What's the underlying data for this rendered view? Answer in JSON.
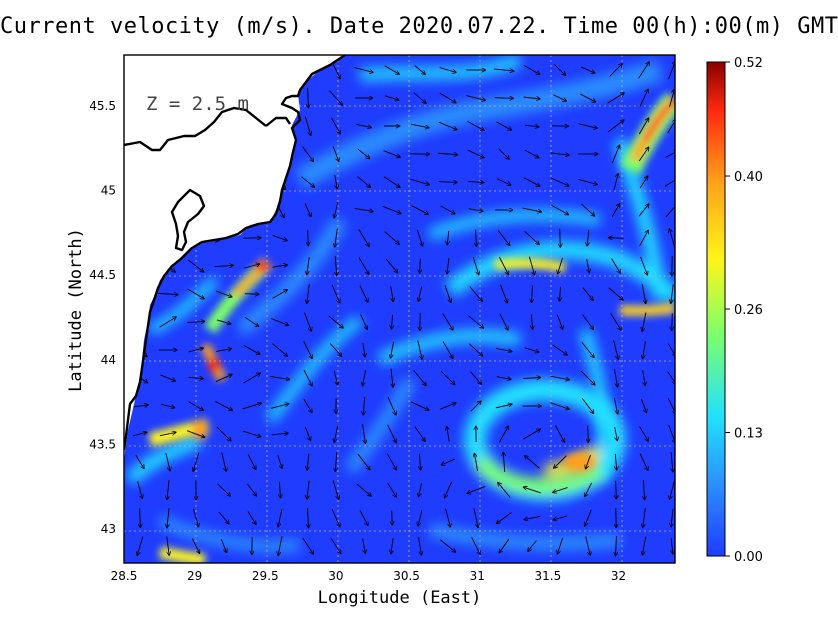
{
  "title": "Current velocity (m/s). Date 2020.07.22. Time 00(h):00(m) GMT",
  "depth_label": "Z = 2.5 m",
  "chart_data": {
    "type": "heatmap",
    "variable": "Current velocity",
    "units": "m/s",
    "date": "2020.07.22",
    "time": "00(h):00(m) GMT",
    "depth": "Z = 2.5 m",
    "xlabel": "Longitude (East)",
    "ylabel": "Latitude (North)",
    "xlim": [
      28.5,
      32.4
    ],
    "ylim": [
      42.8,
      45.8
    ],
    "xticks": [
      28.5,
      29,
      29.5,
      30,
      30.5,
      31,
      31.5,
      32
    ],
    "xtick_labels": [
      "28.5",
      "29",
      "29.5",
      "30",
      "30.5",
      "31",
      "31.5",
      "32"
    ],
    "yticks": [
      43,
      43.5,
      44,
      44.5,
      45,
      45.5
    ],
    "ytick_labels": [
      "43",
      "43.5",
      "44",
      "44.5",
      "45",
      "45.5"
    ],
    "grid": true,
    "colorbar": {
      "range": [
        0.0,
        0.52
      ],
      "ticks": [
        0.0,
        0.13,
        0.26,
        0.4,
        0.52
      ],
      "tick_labels": [
        "0.00",
        "0.13",
        "0.26",
        "0.40",
        "0.52"
      ],
      "colormap": [
        "#1f3cff",
        "#2c8cff",
        "#21e0ff",
        "#7dff6a",
        "#fff51a",
        "#ff9f1a",
        "#ff2a10",
        "#8a0000"
      ]
    },
    "land_color": "#ffffff",
    "coast_color": "#000000",
    "features": [
      {
        "name": "eddy",
        "center": [
          31.35,
          43.45
        ],
        "speed": 0.4,
        "rotation": "anticyclonic"
      },
      {
        "name": "jet-northeast",
        "center": [
          32.2,
          45.3
        ],
        "speed": 0.52
      },
      {
        "name": "jet-east",
        "center": [
          31.5,
          44.55
        ],
        "speed": 0.32
      },
      {
        "name": "coastal-jet-north",
        "center": [
          29.45,
          44.55
        ],
        "speed": 0.42
      },
      {
        "name": "coastal-jet-mid",
        "center": [
          29.1,
          43.98
        ],
        "speed": 0.4
      },
      {
        "name": "coastal-jet-south",
        "center": [
          28.95,
          43.55
        ],
        "speed": 0.4
      },
      {
        "name": "southwest-patch",
        "center": [
          28.95,
          42.85
        ],
        "speed": 0.32
      }
    ]
  }
}
